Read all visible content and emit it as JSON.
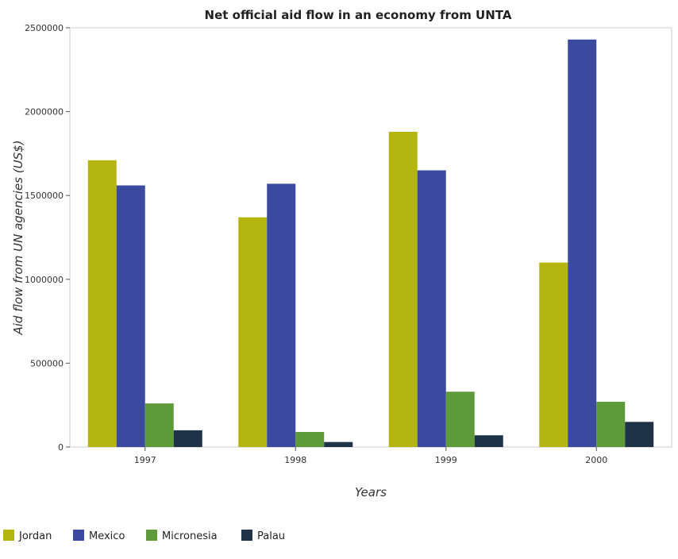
{
  "chart_data": {
    "type": "bar",
    "title": "Net official aid flow in an economy from UNTA",
    "xlabel": "Years",
    "ylabel": "Aid flow from UN agencies (US$)",
    "categories": [
      "1997",
      "1998",
      "1999",
      "2000"
    ],
    "series": [
      {
        "name": "Jordan",
        "color": "#b5b50f",
        "values": [
          1710000,
          1370000,
          1880000,
          1100000
        ]
      },
      {
        "name": "Mexico",
        "color": "#3b4a9e",
        "values": [
          1560000,
          1570000,
          1650000,
          2430000
        ]
      },
      {
        "name": "Micronesia",
        "color": "#5f9a3a",
        "values": [
          260000,
          90000,
          330000,
          270000
        ]
      },
      {
        "name": "Palau",
        "color": "#1e3348",
        "values": [
          100000,
          30000,
          70000,
          150000
        ]
      }
    ],
    "ylim": [
      0,
      2500000
    ],
    "yticks": [
      0,
      500000,
      1000000,
      1500000,
      2000000,
      2500000
    ],
    "ytick_labels": [
      "0",
      "500000",
      "1000000",
      "1500000",
      "2000000",
      "2500000"
    ],
    "grid": false,
    "legend_position": "bottom-left"
  }
}
